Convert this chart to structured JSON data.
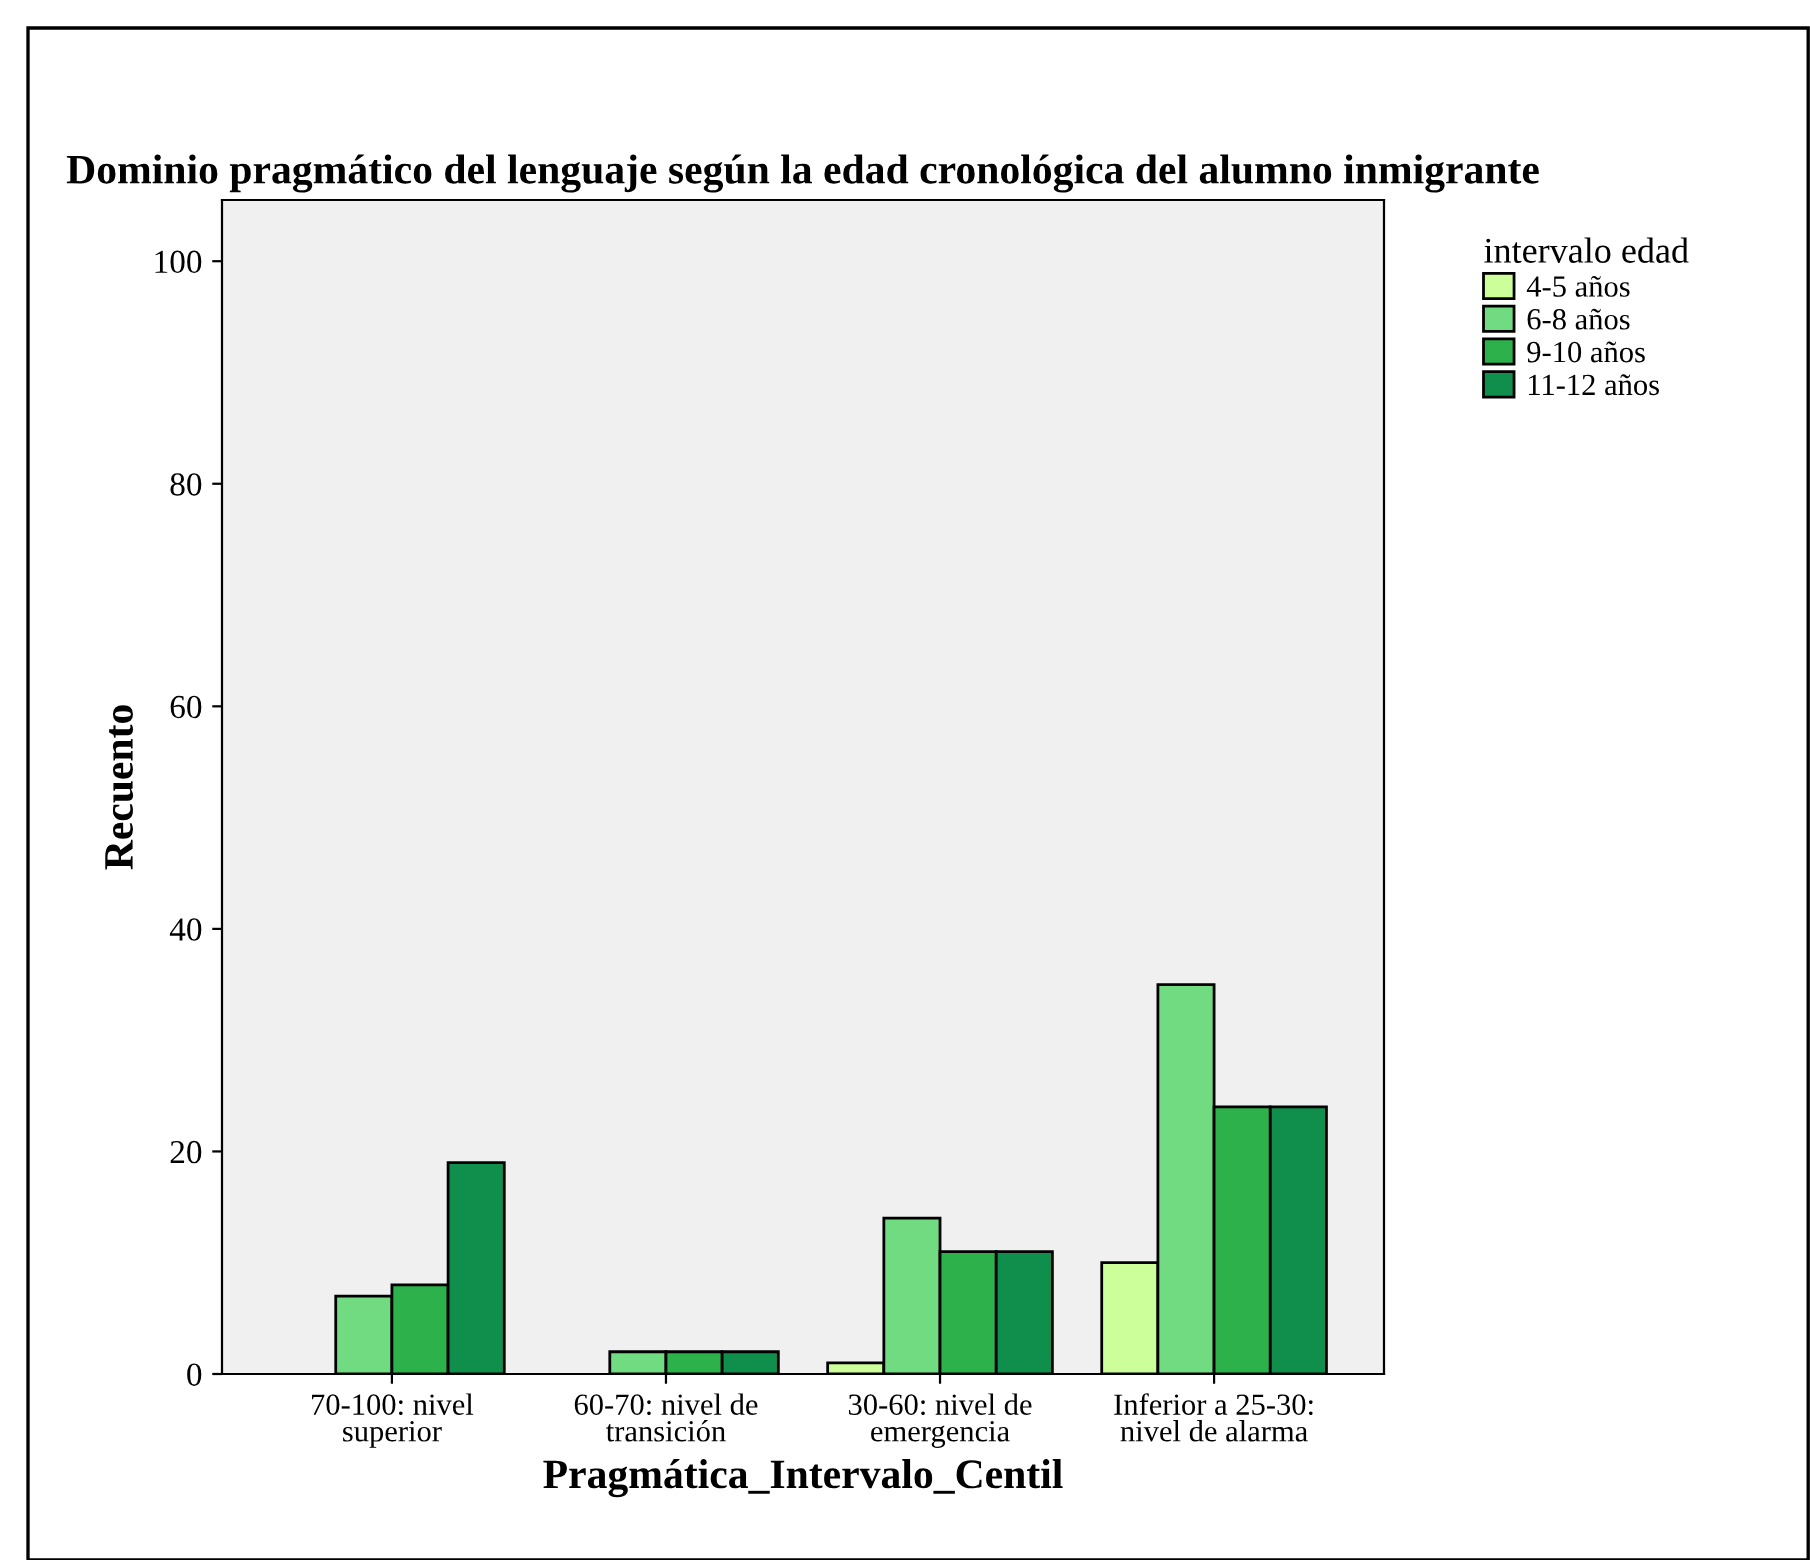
{
  "chart_data": {
    "type": "bar",
    "title": "Dominio pragmático del lenguaje según la edad cronológica del alumno inmigrante",
    "xlabel": "Pragmática_Intervalo_Centil",
    "ylabel": "Recuento",
    "legend_title": "intervalo edad",
    "categories": [
      "70-100: nivel\nsuperior",
      "60-70: nivel de\ntransición",
      "30-60: nivel de\nemergencia",
      "Inferior a 25-30:\nnivel de alarma"
    ],
    "series": [
      {
        "name": "4-5 años",
        "color": "#ccff99",
        "values": [
          null,
          null,
          1,
          10
        ]
      },
      {
        "name": "6-8 años",
        "color": "#70db80",
        "values": [
          7,
          2,
          14,
          35
        ]
      },
      {
        "name": "9-10 años",
        "color": "#2db24b",
        "values": [
          8,
          2,
          11,
          24
        ]
      },
      {
        "name": "11-12 años",
        "color": "#0f8f4b",
        "values": [
          19,
          2,
          11,
          24
        ]
      }
    ],
    "ylim": [
      0,
      105.5
    ],
    "yticks": [
      0,
      20,
      40,
      60,
      80,
      100
    ],
    "grid": false,
    "legend": "top right"
  }
}
